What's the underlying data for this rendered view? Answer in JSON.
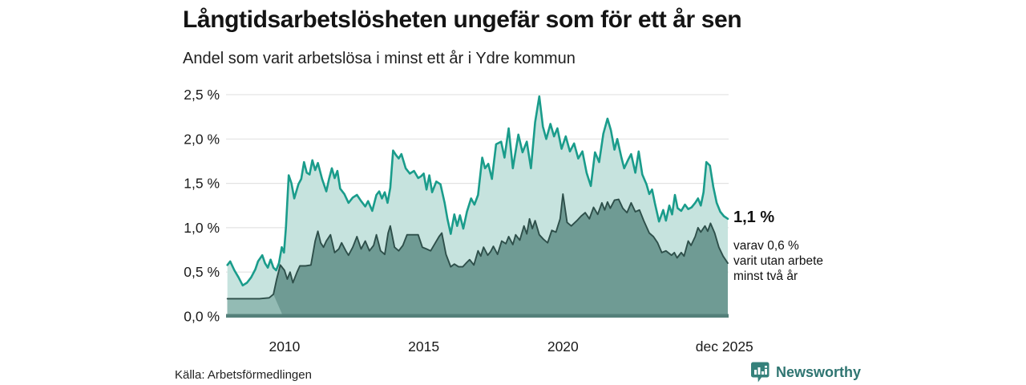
{
  "header": {
    "title": "Långtidsarbetslösheten ungefär som för ett år sen",
    "subtitle": "Andel som varit arbetslösa i minst ett år i Ydre kommun"
  },
  "annotations": {
    "latest_value": "1,1 %",
    "sub_lines": [
      "varav 0,6 %",
      "varit utan arbete",
      "minst två år"
    ]
  },
  "footer": {
    "source": "Källa: Arbetsförmedlingen",
    "brand": "Newsworthy",
    "brand_icon": "newsworthy-bars-icon"
  },
  "colors": {
    "line_one_year": "#1a9c8b",
    "fill_one_year": "#c6e3de",
    "line_two_year": "#2e4f4a",
    "fill_two_year": "#6f9b94",
    "fill_two_year_early": "#93bbb4",
    "baseline": "#54807a",
    "grid": "#e3e3e3",
    "brand": "#2f7571",
    "text": "#1a1a1a"
  },
  "chart_data": {
    "type": "area",
    "title": "Långtidsarbetslösheten ungefär som för ett år sen",
    "subtitle": "Andel som varit arbetslösa i minst ett år i Ydre kommun",
    "ylabel": "",
    "xlabel": "",
    "ylim": [
      0,
      2.5
    ],
    "xlim": [
      2007.9,
      2025.95
    ],
    "grid": true,
    "legend_position": "none",
    "y_ticks": [
      {
        "label": "0,0 %",
        "v": 0.0
      },
      {
        "label": "0,5 %",
        "v": 0.5
      },
      {
        "label": "1,0 %",
        "v": 1.0
      },
      {
        "label": "1,5 %",
        "v": 1.5
      },
      {
        "label": "2,0 %",
        "v": 2.0
      },
      {
        "label": "2,5 %",
        "v": 2.5
      }
    ],
    "x_ticks": [
      {
        "label": "2010",
        "x": 2010.0
      },
      {
        "label": "2015",
        "x": 2015.0
      },
      {
        "label": "2020",
        "x": 2020.0
      },
      {
        "label": "dec 2025",
        "x": 2025.8
      }
    ],
    "series": [
      {
        "name": "Andel arbetslösa minst ett år",
        "final_value_pct": 1.1,
        "points": [
          [
            2007.95,
            0.58
          ],
          [
            2008.05,
            0.62
          ],
          [
            2008.2,
            0.52
          ],
          [
            2008.35,
            0.44
          ],
          [
            2008.5,
            0.35
          ],
          [
            2008.65,
            0.38
          ],
          [
            2008.8,
            0.44
          ],
          [
            2008.95,
            0.53
          ],
          [
            2009.05,
            0.62
          ],
          [
            2009.2,
            0.69
          ],
          [
            2009.3,
            0.6
          ],
          [
            2009.4,
            0.55
          ],
          [
            2009.5,
            0.64
          ],
          [
            2009.6,
            0.55
          ],
          [
            2009.7,
            0.52
          ],
          [
            2009.8,
            0.6
          ],
          [
            2009.9,
            0.78
          ],
          [
            2009.98,
            0.72
          ],
          [
            2010.05,
            1.0
          ],
          [
            2010.15,
            1.59
          ],
          [
            2010.25,
            1.5
          ],
          [
            2010.35,
            1.33
          ],
          [
            2010.5,
            1.49
          ],
          [
            2010.6,
            1.55
          ],
          [
            2010.7,
            1.74
          ],
          [
            2010.8,
            1.62
          ],
          [
            2010.9,
            1.6
          ],
          [
            2011.0,
            1.76
          ],
          [
            2011.1,
            1.65
          ],
          [
            2011.2,
            1.73
          ],
          [
            2011.35,
            1.55
          ],
          [
            2011.5,
            1.41
          ],
          [
            2011.6,
            1.55
          ],
          [
            2011.7,
            1.67
          ],
          [
            2011.8,
            1.56
          ],
          [
            2011.9,
            1.64
          ],
          [
            2012.0,
            1.44
          ],
          [
            2012.15,
            1.38
          ],
          [
            2012.3,
            1.28
          ],
          [
            2012.45,
            1.34
          ],
          [
            2012.6,
            1.37
          ],
          [
            2012.75,
            1.3
          ],
          [
            2012.9,
            1.24
          ],
          [
            2013.0,
            1.3
          ],
          [
            2013.15,
            1.19
          ],
          [
            2013.3,
            1.37
          ],
          [
            2013.4,
            1.41
          ],
          [
            2013.5,
            1.33
          ],
          [
            2013.6,
            1.4
          ],
          [
            2013.7,
            1.28
          ],
          [
            2013.8,
            1.45
          ],
          [
            2013.9,
            1.87
          ],
          [
            2014.0,
            1.82
          ],
          [
            2014.1,
            1.78
          ],
          [
            2014.2,
            1.83
          ],
          [
            2014.35,
            1.67
          ],
          [
            2014.5,
            1.61
          ],
          [
            2014.65,
            1.64
          ],
          [
            2014.8,
            1.56
          ],
          [
            2014.9,
            1.58
          ],
          [
            2015.0,
            1.61
          ],
          [
            2015.1,
            1.43
          ],
          [
            2015.2,
            1.59
          ],
          [
            2015.3,
            1.4
          ],
          [
            2015.45,
            1.52
          ],
          [
            2015.6,
            1.49
          ],
          [
            2015.75,
            1.28
          ],
          [
            2015.85,
            1.1
          ],
          [
            2015.97,
            0.93
          ],
          [
            2016.1,
            1.15
          ],
          [
            2016.2,
            1.02
          ],
          [
            2016.3,
            1.14
          ],
          [
            2016.42,
            0.99
          ],
          [
            2016.55,
            1.18
          ],
          [
            2016.7,
            1.33
          ],
          [
            2016.82,
            1.26
          ],
          [
            2016.95,
            1.37
          ],
          [
            2017.1,
            1.79
          ],
          [
            2017.2,
            1.67
          ],
          [
            2017.32,
            1.72
          ],
          [
            2017.45,
            1.55
          ],
          [
            2017.6,
            1.94
          ],
          [
            2017.78,
            1.97
          ],
          [
            2017.9,
            1.79
          ],
          [
            2018.05,
            2.12
          ],
          [
            2018.2,
            1.67
          ],
          [
            2018.4,
            2.05
          ],
          [
            2018.55,
            1.85
          ],
          [
            2018.7,
            1.97
          ],
          [
            2018.85,
            1.67
          ],
          [
            2019.0,
            2.19
          ],
          [
            2019.15,
            2.48
          ],
          [
            2019.28,
            2.14
          ],
          [
            2019.4,
            2.0
          ],
          [
            2019.55,
            2.17
          ],
          [
            2019.68,
            2.03
          ],
          [
            2019.8,
            2.12
          ],
          [
            2019.95,
            1.89
          ],
          [
            2020.1,
            2.03
          ],
          [
            2020.25,
            1.86
          ],
          [
            2020.4,
            1.95
          ],
          [
            2020.55,
            1.78
          ],
          [
            2020.7,
            1.86
          ],
          [
            2020.85,
            1.62
          ],
          [
            2021.0,
            1.47
          ],
          [
            2021.15,
            1.85
          ],
          [
            2021.3,
            1.74
          ],
          [
            2021.45,
            2.06
          ],
          [
            2021.6,
            2.23
          ],
          [
            2021.72,
            2.1
          ],
          [
            2021.85,
            1.88
          ],
          [
            2021.95,
            2.0
          ],
          [
            2022.1,
            1.79
          ],
          [
            2022.2,
            1.67
          ],
          [
            2022.35,
            1.77
          ],
          [
            2022.45,
            1.83
          ],
          [
            2022.6,
            1.62
          ],
          [
            2022.72,
            1.86
          ],
          [
            2022.85,
            1.6
          ],
          [
            2023.0,
            1.49
          ],
          [
            2023.1,
            1.38
          ],
          [
            2023.2,
            1.43
          ],
          [
            2023.3,
            1.28
          ],
          [
            2023.45,
            1.07
          ],
          [
            2023.6,
            1.2
          ],
          [
            2023.7,
            1.08
          ],
          [
            2023.82,
            1.25
          ],
          [
            2023.92,
            1.15
          ],
          [
            2024.02,
            1.37
          ],
          [
            2024.12,
            1.22
          ],
          [
            2024.25,
            1.19
          ],
          [
            2024.38,
            1.26
          ],
          [
            2024.5,
            1.21
          ],
          [
            2024.62,
            1.23
          ],
          [
            2024.75,
            1.28
          ],
          [
            2024.85,
            1.33
          ],
          [
            2024.95,
            1.25
          ],
          [
            2025.05,
            1.4
          ],
          [
            2025.15,
            1.74
          ],
          [
            2025.28,
            1.7
          ],
          [
            2025.4,
            1.46
          ],
          [
            2025.52,
            1.28
          ],
          [
            2025.65,
            1.18
          ],
          [
            2025.78,
            1.13
          ],
          [
            2025.92,
            1.1
          ]
        ]
      },
      {
        "name": "varav utan arbete minst två år",
        "final_value_pct": 0.6,
        "early_segment_end": 2009.6,
        "points": [
          [
            2007.95,
            0.2
          ],
          [
            2008.3,
            0.2
          ],
          [
            2008.7,
            0.2
          ],
          [
            2009.1,
            0.2
          ],
          [
            2009.45,
            0.21
          ],
          [
            2009.6,
            0.25
          ],
          [
            2009.72,
            0.42
          ],
          [
            2009.85,
            0.58
          ],
          [
            2010.0,
            0.52
          ],
          [
            2010.1,
            0.42
          ],
          [
            2010.2,
            0.5
          ],
          [
            2010.3,
            0.38
          ],
          [
            2010.45,
            0.5
          ],
          [
            2010.55,
            0.57
          ],
          [
            2010.75,
            0.57
          ],
          [
            2010.95,
            0.58
          ],
          [
            2011.1,
            0.85
          ],
          [
            2011.2,
            0.96
          ],
          [
            2011.3,
            0.83
          ],
          [
            2011.4,
            0.78
          ],
          [
            2011.5,
            0.85
          ],
          [
            2011.65,
            0.92
          ],
          [
            2011.8,
            0.72
          ],
          [
            2011.95,
            0.76
          ],
          [
            2012.05,
            0.83
          ],
          [
            2012.2,
            0.74
          ],
          [
            2012.3,
            0.69
          ],
          [
            2012.45,
            0.78
          ],
          [
            2012.6,
            0.9
          ],
          [
            2012.75,
            0.76
          ],
          [
            2012.9,
            0.85
          ],
          [
            2013.05,
            0.74
          ],
          [
            2013.2,
            0.8
          ],
          [
            2013.3,
            0.92
          ],
          [
            2013.45,
            0.74
          ],
          [
            2013.6,
            0.7
          ],
          [
            2013.72,
            0.94
          ],
          [
            2013.8,
            1.02
          ],
          [
            2013.95,
            0.78
          ],
          [
            2014.1,
            0.74
          ],
          [
            2014.25,
            0.8
          ],
          [
            2014.4,
            0.92
          ],
          [
            2014.6,
            0.92
          ],
          [
            2014.8,
            0.92
          ],
          [
            2014.95,
            0.78
          ],
          [
            2015.1,
            0.76
          ],
          [
            2015.25,
            0.74
          ],
          [
            2015.4,
            0.82
          ],
          [
            2015.55,
            0.9
          ],
          [
            2015.65,
            0.94
          ],
          [
            2015.8,
            0.7
          ],
          [
            2015.97,
            0.56
          ],
          [
            2016.1,
            0.59
          ],
          [
            2016.25,
            0.56
          ],
          [
            2016.4,
            0.56
          ],
          [
            2016.55,
            0.61
          ],
          [
            2016.65,
            0.64
          ],
          [
            2016.8,
            0.58
          ],
          [
            2016.95,
            0.74
          ],
          [
            2017.05,
            0.68
          ],
          [
            2017.15,
            0.78
          ],
          [
            2017.3,
            0.69
          ],
          [
            2017.4,
            0.73
          ],
          [
            2017.5,
            0.79
          ],
          [
            2017.65,
            0.7
          ],
          [
            2017.8,
            0.85
          ],
          [
            2017.95,
            0.82
          ],
          [
            2018.05,
            0.9
          ],
          [
            2018.2,
            0.81
          ],
          [
            2018.3,
            0.92
          ],
          [
            2018.45,
            0.86
          ],
          [
            2018.6,
            1.02
          ],
          [
            2018.7,
            0.93
          ],
          [
            2018.8,
            1.1
          ],
          [
            2018.9,
            0.99
          ],
          [
            2019.0,
            1.08
          ],
          [
            2019.15,
            0.92
          ],
          [
            2019.3,
            0.87
          ],
          [
            2019.45,
            0.83
          ],
          [
            2019.6,
            0.97
          ],
          [
            2019.75,
            0.95
          ],
          [
            2019.9,
            1.1
          ],
          [
            2020.0,
            1.38
          ],
          [
            2020.15,
            1.06
          ],
          [
            2020.3,
            1.02
          ],
          [
            2020.5,
            1.08
          ],
          [
            2020.65,
            1.13
          ],
          [
            2020.8,
            1.17
          ],
          [
            2020.95,
            1.1
          ],
          [
            2021.1,
            1.23
          ],
          [
            2021.25,
            1.15
          ],
          [
            2021.4,
            1.28
          ],
          [
            2021.5,
            1.2
          ],
          [
            2021.6,
            1.29
          ],
          [
            2021.7,
            1.22
          ],
          [
            2021.85,
            1.31
          ],
          [
            2022.0,
            1.32
          ],
          [
            2022.15,
            1.22
          ],
          [
            2022.3,
            1.17
          ],
          [
            2022.45,
            1.28
          ],
          [
            2022.6,
            1.18
          ],
          [
            2022.75,
            1.2
          ],
          [
            2022.9,
            1.08
          ],
          [
            2023.1,
            0.94
          ],
          [
            2023.25,
            0.9
          ],
          [
            2023.4,
            0.83
          ],
          [
            2023.55,
            0.72
          ],
          [
            2023.7,
            0.74
          ],
          [
            2023.9,
            0.69
          ],
          [
            2024.0,
            0.72
          ],
          [
            2024.1,
            0.66
          ],
          [
            2024.25,
            0.72
          ],
          [
            2024.35,
            0.68
          ],
          [
            2024.5,
            0.85
          ],
          [
            2024.6,
            0.8
          ],
          [
            2024.75,
            0.9
          ],
          [
            2024.85,
            1.0
          ],
          [
            2024.95,
            0.95
          ],
          [
            2025.1,
            1.02
          ],
          [
            2025.2,
            0.96
          ],
          [
            2025.3,
            1.05
          ],
          [
            2025.45,
            0.94
          ],
          [
            2025.6,
            0.78
          ],
          [
            2025.75,
            0.68
          ],
          [
            2025.92,
            0.6
          ]
        ]
      }
    ]
  }
}
